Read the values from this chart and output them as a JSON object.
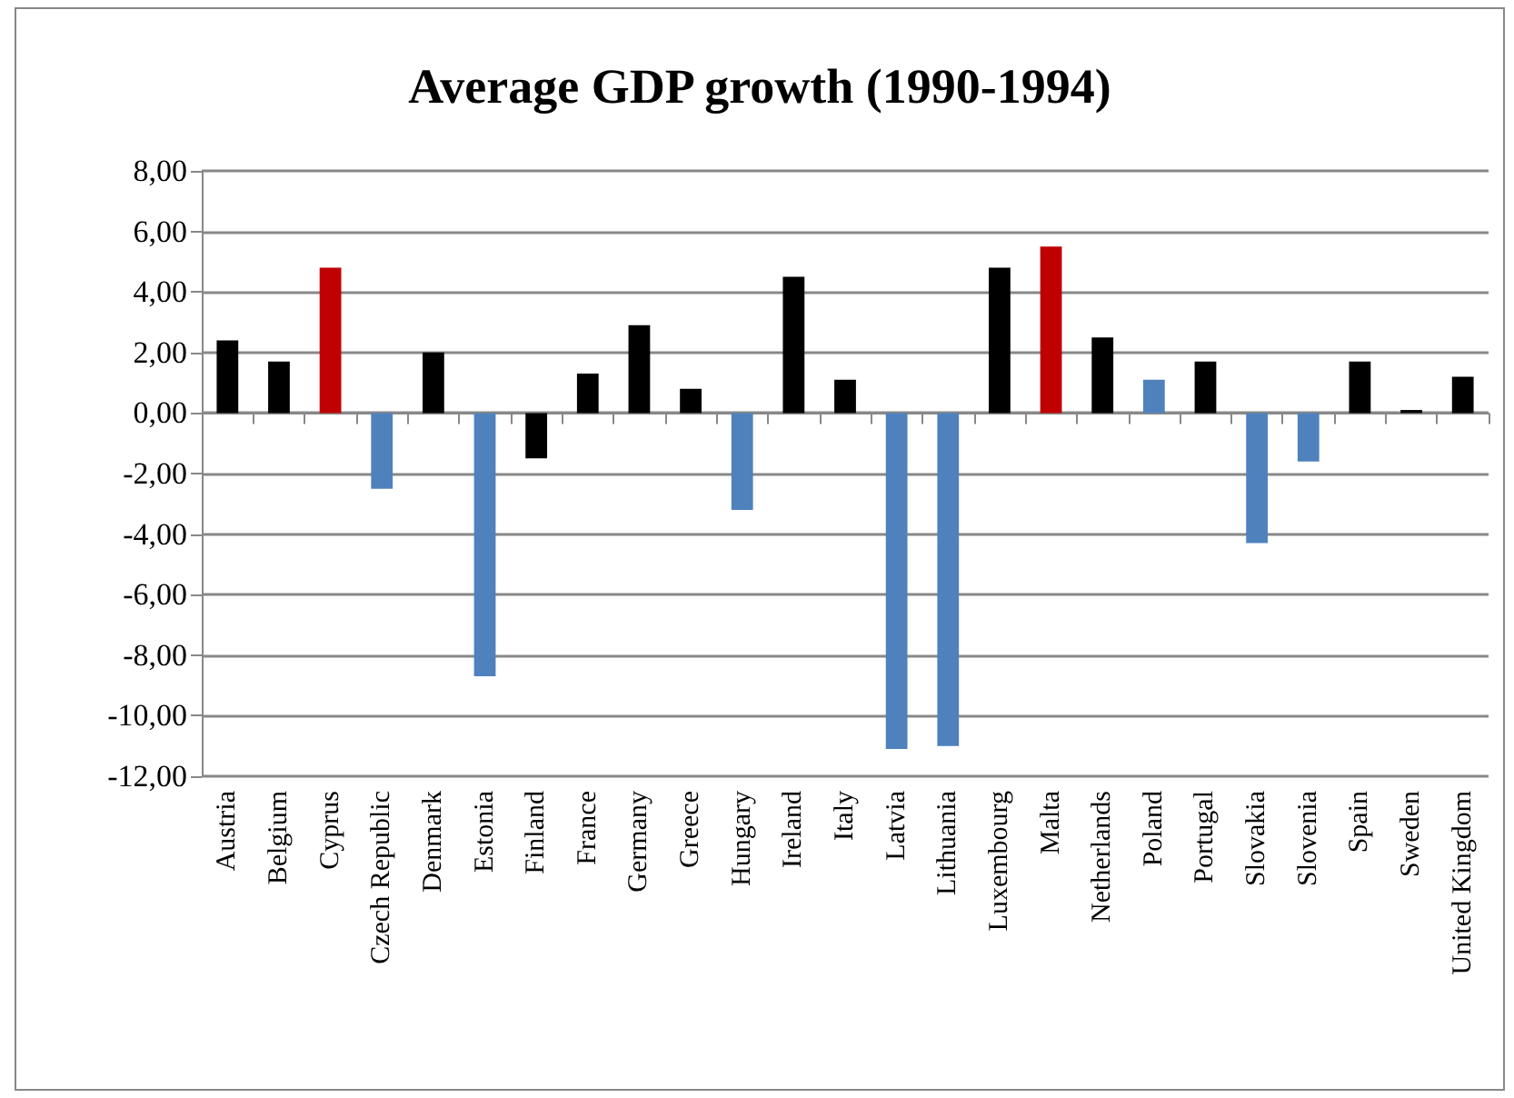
{
  "chart_data": {
    "type": "bar",
    "title": "Average GDP growth (1990-1994)",
    "categories": [
      "Austria",
      "Belgium",
      "Cyprus",
      "Czech Republic",
      "Denmark",
      "Estonia",
      "Finland",
      "France",
      "Germany",
      "Greece",
      "Hungary",
      "Ireland",
      "Italy",
      "Latvia",
      "Lithuania",
      "Luxembourg",
      "Malta",
      "Netherlands",
      "Poland",
      "Portugal",
      "Slovakia",
      "Slovenia",
      "Spain",
      "Sweden",
      "United Kingdom"
    ],
    "values": [
      2.4,
      1.7,
      4.8,
      -2.5,
      2.0,
      -8.7,
      -1.5,
      1.3,
      2.9,
      0.8,
      -3.2,
      4.5,
      1.1,
      -11.1,
      -11.0,
      4.8,
      5.5,
      2.5,
      1.1,
      1.7,
      -4.3,
      -1.6,
      1.7,
      0.1,
      1.2
    ],
    "colors": [
      "#000000",
      "#000000",
      "#c00000",
      "#4f81bd",
      "#000000",
      "#4f81bd",
      "#000000",
      "#000000",
      "#000000",
      "#000000",
      "#4f81bd",
      "#000000",
      "#000000",
      "#4f81bd",
      "#4f81bd",
      "#000000",
      "#c00000",
      "#000000",
      "#4f81bd",
      "#000000",
      "#4f81bd",
      "#4f81bd",
      "#000000",
      "#000000",
      "#000000"
    ],
    "ylim": [
      -12,
      8
    ],
    "yticks": [
      {
        "value": -12,
        "label": "-12,00"
      },
      {
        "value": -10,
        "label": "-10,00"
      },
      {
        "value": -8,
        "label": "-8,00"
      },
      {
        "value": -6,
        "label": "-6,00"
      },
      {
        "value": -4,
        "label": "-4,00"
      },
      {
        "value": -2,
        "label": "-2,00"
      },
      {
        "value": 0,
        "label": "0,00"
      },
      {
        "value": 2,
        "label": "2,00"
      },
      {
        "value": 4,
        "label": "4,00"
      },
      {
        "value": 6,
        "label": "6,00"
      },
      {
        "value": 8,
        "label": "8,00"
      }
    ],
    "grid": "y"
  }
}
